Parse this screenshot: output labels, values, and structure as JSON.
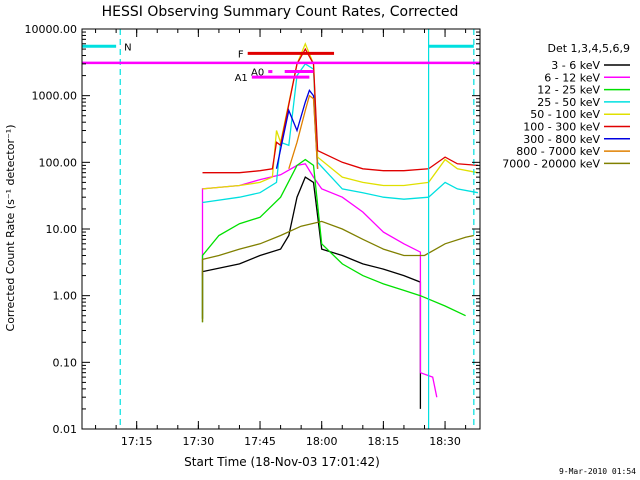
{
  "chart_data": {
    "type": "line",
    "title": "HESSI Observing Summary Count Rates, Corrected",
    "xlabel": "Start Time (18-Nov-03 17:01:42)",
    "ylabel": "Corrected Count Rate (s⁻¹ detector⁻¹)",
    "yscale": "log",
    "ylim": [
      0.01,
      10000
    ],
    "y_ticks": [
      {
        "value": 0.01,
        "label": "0.01"
      },
      {
        "value": 0.1,
        "label": "0.10"
      },
      {
        "value": 1,
        "label": "1.00"
      },
      {
        "value": 10,
        "label": "10.00"
      },
      {
        "value": 100,
        "label": "100.00"
      },
      {
        "value": 1000,
        "label": "1000.00"
      },
      {
        "value": 10000,
        "label": "10000.00"
      }
    ],
    "xlim": [
      "17:01:42",
      "18:38:30"
    ],
    "x_ticks": [
      {
        "time": "17:15",
        "label": "17:15"
      },
      {
        "time": "17:30",
        "label": "17:30"
      },
      {
        "time": "17:45",
        "label": "17:45"
      },
      {
        "time": "18:00",
        "label": "18:00"
      },
      {
        "time": "18:15",
        "label": "18:15"
      },
      {
        "time": "18:30",
        "label": "18:30"
      }
    ],
    "legend": {
      "placement": "right",
      "title": "Det 1,3,4,5,6,9"
    },
    "series": [
      {
        "name": "3 - 6 keV",
        "color": "#000000",
        "points": [
          [
            "17:31:00",
            0.45
          ],
          [
            "17:31:00",
            2.3
          ],
          [
            "17:40",
            3
          ],
          [
            "17:45",
            4
          ],
          [
            "17:50",
            5
          ],
          [
            "17:52",
            8
          ],
          [
            "17:54",
            30
          ],
          [
            "17:56",
            60
          ],
          [
            "17:58",
            50
          ],
          [
            "18:00",
            5
          ],
          [
            "18:05",
            4
          ],
          [
            "18:10",
            3
          ],
          [
            "18:15",
            2.5
          ],
          [
            "18:20",
            2
          ],
          [
            "18:24",
            1.6
          ],
          [
            "18:24",
            0.02
          ]
        ]
      },
      {
        "name": "6 - 12 keV",
        "color": "#ff00ff",
        "points": [
          [
            "17:31:00",
            2
          ],
          [
            "17:31:00",
            40
          ],
          [
            "17:40",
            45
          ],
          [
            "17:45",
            55
          ],
          [
            "17:50",
            65
          ],
          [
            "17:54",
            90
          ],
          [
            "17:56",
            95
          ],
          [
            "17:58",
            60
          ],
          [
            "18:00",
            40
          ],
          [
            "18:05",
            30
          ],
          [
            "18:10",
            18
          ],
          [
            "18:15",
            9
          ],
          [
            "18:20",
            6
          ],
          [
            "18:24",
            4.5
          ],
          [
            "18:24",
            0.07
          ],
          [
            "18:27",
            0.06
          ],
          [
            "18:28",
            0.03
          ]
        ]
      },
      {
        "name": "12 - 25 keV",
        "color": "#00e000",
        "points": [
          [
            "17:31:00",
            0.4
          ],
          [
            "17:31:00",
            4
          ],
          [
            "17:35",
            8
          ],
          [
            "17:40",
            12
          ],
          [
            "17:45",
            15
          ],
          [
            "17:50",
            30
          ],
          [
            "17:54",
            90
          ],
          [
            "17:56",
            110
          ],
          [
            "17:58",
            90
          ],
          [
            "18:00",
            6
          ],
          [
            "18:05",
            3
          ],
          [
            "18:10",
            2
          ],
          [
            "18:15",
            1.5
          ],
          [
            "18:20",
            1.2
          ],
          [
            "18:24",
            1
          ],
          [
            "18:30",
            0.7
          ],
          [
            "18:35",
            0.5
          ]
        ]
      },
      {
        "name": "25 - 50 keV",
        "color": "#00e0e0",
        "points": [
          [
            "17:31:00",
            25
          ],
          [
            "17:40",
            30
          ],
          [
            "17:45",
            35
          ],
          [
            "17:49",
            50
          ],
          [
            "17:50",
            200
          ],
          [
            "17:52",
            180
          ],
          [
            "17:54",
            2000
          ],
          [
            "17:56",
            3000
          ],
          [
            "17:58",
            2500
          ],
          [
            "17:59",
            100
          ],
          [
            "18:05",
            40
          ],
          [
            "18:10",
            35
          ],
          [
            "18:15",
            30
          ],
          [
            "18:20",
            28
          ],
          [
            "18:26",
            30
          ],
          [
            "18:30",
            50
          ],
          [
            "18:33",
            40
          ],
          [
            "18:38",
            35
          ]
        ]
      },
      {
        "name": "50 - 100 keV",
        "color": "#e0e000",
        "points": [
          [
            "17:31:00",
            40
          ],
          [
            "17:40",
            45
          ],
          [
            "17:45",
            50
          ],
          [
            "17:48",
            60
          ],
          [
            "17:49",
            300
          ],
          [
            "17:50",
            200
          ],
          [
            "17:54",
            3000
          ],
          [
            "17:56",
            6000
          ],
          [
            "17:58",
            3000
          ],
          [
            "17:59",
            120
          ],
          [
            "18:05",
            60
          ],
          [
            "18:10",
            50
          ],
          [
            "18:15",
            45
          ],
          [
            "18:20",
            45
          ],
          [
            "18:26",
            50
          ],
          [
            "18:30",
            110
          ],
          [
            "18:33",
            80
          ],
          [
            "18:38",
            70
          ]
        ]
      },
      {
        "name": "100 - 300 keV",
        "color": "#e00000",
        "points": [
          [
            "17:31:00",
            70
          ],
          [
            "17:40",
            70
          ],
          [
            "17:45",
            75
          ],
          [
            "17:48",
            80
          ],
          [
            "17:49",
            200
          ],
          [
            "17:50",
            180
          ],
          [
            "17:54",
            3000
          ],
          [
            "17:56",
            5000
          ],
          [
            "17:58",
            3000
          ],
          [
            "17:59",
            150
          ],
          [
            "18:05",
            100
          ],
          [
            "18:10",
            80
          ],
          [
            "18:15",
            75
          ],
          [
            "18:20",
            75
          ],
          [
            "18:26",
            80
          ],
          [
            "18:30",
            120
          ],
          [
            "18:33",
            95
          ],
          [
            "18:38",
            90
          ]
        ]
      },
      {
        "name": "300 - 800 keV",
        "color": "#0000e0",
        "points": [
          [
            "17:49",
            80
          ],
          [
            "17:52",
            600
          ],
          [
            "17:54",
            300
          ],
          [
            "17:56",
            800
          ],
          [
            "17:57",
            1200
          ],
          [
            "17:58",
            1000
          ],
          [
            "17:59",
            80
          ]
        ]
      },
      {
        "name": "800 - 7000 keV",
        "color": "#e08000",
        "points": [
          [
            "17:52",
            80
          ],
          [
            "17:54",
            200
          ],
          [
            "17:56",
            600
          ],
          [
            "17:57",
            1000
          ],
          [
            "17:58",
            900
          ],
          [
            "17:59",
            80
          ]
        ]
      },
      {
        "name": "7000 - 20000 keV",
        "color": "#808000",
        "points": [
          [
            "17:31:00",
            0.4
          ],
          [
            "17:31:00",
            3.5
          ],
          [
            "17:35",
            4
          ],
          [
            "17:40",
            5
          ],
          [
            "17:45",
            6
          ],
          [
            "17:50",
            8
          ],
          [
            "17:55",
            11
          ],
          [
            "18:00",
            13
          ],
          [
            "18:05",
            10
          ],
          [
            "18:10",
            7
          ],
          [
            "18:15",
            5
          ],
          [
            "18:20",
            4
          ],
          [
            "18:25",
            4
          ],
          [
            "18:30",
            6
          ],
          [
            "18:35",
            7.5
          ],
          [
            "18:37",
            8
          ]
        ]
      }
    ],
    "annotations": [
      {
        "label": "N",
        "color": "#00e0e0",
        "segments": [
          [
            "17:01:42",
            "17:10"
          ],
          [
            "18:26",
            "18:37"
          ]
        ],
        "y": 5500
      },
      {
        "label": "F",
        "color": "#e00000",
        "segments": [
          [
            "17:42",
            "18:03"
          ]
        ],
        "y": 4300
      },
      {
        "label": "A0",
        "color": "#ff00ff",
        "segments": [
          [
            "17:47",
            "17:48"
          ],
          [
            "17:51",
            "17:58"
          ]
        ],
        "y": 2300
      },
      {
        "label": "A1",
        "color": "#ff00ff",
        "segments": [
          [
            "17:43",
            "17:57"
          ]
        ],
        "y": 1900
      }
    ],
    "markers": [
      {
        "type": "dashed-vertical",
        "color": "#00e0e0",
        "time": "17:11"
      },
      {
        "type": "dashed-vertical",
        "color": "#00e0e0",
        "time": "18:37"
      },
      {
        "type": "solid-vertical",
        "color": "#00e0e0",
        "time": "18:26"
      },
      {
        "type": "horizontal",
        "color": "#ff00ff",
        "y": 3100
      }
    ]
  },
  "footer": {
    "timestamp": "9-Mar-2010 01:54"
  }
}
